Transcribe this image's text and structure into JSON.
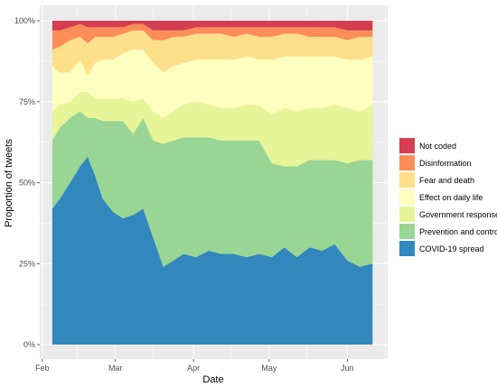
{
  "chart_data": {
    "type": "area",
    "title": "",
    "xlabel": "Date",
    "ylabel": "Proportion of tweets",
    "x_ticks": [
      "Feb",
      "Mar",
      "Apr",
      "May",
      "Jun"
    ],
    "y_ticks": [
      "0%",
      "25%",
      "50%",
      "75%",
      "100%"
    ],
    "ylim": [
      0,
      1
    ],
    "x": [
      "2020-02-05",
      "2020-02-08",
      "2020-02-12",
      "2020-02-16",
      "2020-02-19",
      "2020-02-22",
      "2020-02-25",
      "2020-02-29",
      "2020-03-04",
      "2020-03-08",
      "2020-03-12",
      "2020-03-16",
      "2020-03-20",
      "2020-03-24",
      "2020-03-28",
      "2020-04-02",
      "2020-04-07",
      "2020-04-12",
      "2020-04-17",
      "2020-04-22",
      "2020-04-27",
      "2020-05-02",
      "2020-05-07",
      "2020-05-12",
      "2020-05-17",
      "2020-05-22",
      "2020-05-27",
      "2020-06-01",
      "2020-06-06",
      "2020-06-11"
    ],
    "stacking": "bottom-to-top",
    "grid": true,
    "legend_position": "right",
    "series": [
      {
        "name": "COVID-19 spread",
        "color": "#3288bd",
        "values": [
          0.42,
          0.45,
          0.5,
          0.55,
          0.58,
          0.52,
          0.45,
          0.41,
          0.39,
          0.4,
          0.42,
          0.33,
          0.24,
          0.26,
          0.28,
          0.27,
          0.29,
          0.28,
          0.28,
          0.27,
          0.28,
          0.27,
          0.3,
          0.27,
          0.3,
          0.29,
          0.31,
          0.26,
          0.24,
          0.25
        ]
      },
      {
        "name": "Prevention and control",
        "color": "#99d594",
        "values": [
          0.21,
          0.22,
          0.2,
          0.17,
          0.12,
          0.18,
          0.24,
          0.28,
          0.3,
          0.25,
          0.28,
          0.3,
          0.38,
          0.37,
          0.36,
          0.37,
          0.35,
          0.35,
          0.35,
          0.36,
          0.35,
          0.29,
          0.25,
          0.28,
          0.27,
          0.28,
          0.26,
          0.3,
          0.33,
          0.32
        ]
      },
      {
        "name": "Government response",
        "color": "#e6f598",
        "values": [
          0.09,
          0.07,
          0.05,
          0.06,
          0.08,
          0.06,
          0.07,
          0.07,
          0.07,
          0.1,
          0.06,
          0.09,
          0.08,
          0.09,
          0.1,
          0.11,
          0.1,
          0.1,
          0.1,
          0.11,
          0.11,
          0.15,
          0.18,
          0.17,
          0.16,
          0.16,
          0.17,
          0.17,
          0.15,
          0.17
        ]
      },
      {
        "name": "Effect on daily life",
        "color": "#ffffbf",
        "values": [
          0.14,
          0.1,
          0.09,
          0.1,
          0.05,
          0.11,
          0.12,
          0.12,
          0.14,
          0.16,
          0.15,
          0.15,
          0.14,
          0.14,
          0.13,
          0.13,
          0.14,
          0.15,
          0.15,
          0.15,
          0.14,
          0.17,
          0.16,
          0.17,
          0.16,
          0.16,
          0.15,
          0.15,
          0.16,
          0.15
        ]
      },
      {
        "name": "Fear and death",
        "color": "#fee08b",
        "values": [
          0.05,
          0.08,
          0.1,
          0.07,
          0.1,
          0.08,
          0.07,
          0.07,
          0.06,
          0.06,
          0.06,
          0.07,
          0.1,
          0.09,
          0.08,
          0.08,
          0.08,
          0.08,
          0.07,
          0.07,
          0.07,
          0.07,
          0.07,
          0.07,
          0.06,
          0.06,
          0.06,
          0.06,
          0.07,
          0.06
        ]
      },
      {
        "name": "Disinformation",
        "color": "#fc8d59",
        "values": [
          0.06,
          0.05,
          0.04,
          0.04,
          0.05,
          0.03,
          0.03,
          0.03,
          0.02,
          0.02,
          0.02,
          0.03,
          0.03,
          0.02,
          0.02,
          0.02,
          0.02,
          0.02,
          0.03,
          0.02,
          0.03,
          0.03,
          0.02,
          0.02,
          0.03,
          0.03,
          0.03,
          0.03,
          0.02,
          0.02
        ]
      },
      {
        "name": "Not coded",
        "color": "#d53e4f",
        "values": [
          0.03,
          0.03,
          0.02,
          0.01,
          0.02,
          0.02,
          0.02,
          0.02,
          0.02,
          0.01,
          0.01,
          0.03,
          0.03,
          0.03,
          0.03,
          0.02,
          0.02,
          0.02,
          0.02,
          0.02,
          0.02,
          0.02,
          0.02,
          0.02,
          0.02,
          0.02,
          0.02,
          0.03,
          0.03,
          0.03
        ]
      }
    ],
    "legend_order": [
      "Not coded",
      "Disinformation",
      "Fear and death",
      "Effect on daily life",
      "Government response",
      "Prevention and control",
      "COVID-19 spread"
    ]
  }
}
